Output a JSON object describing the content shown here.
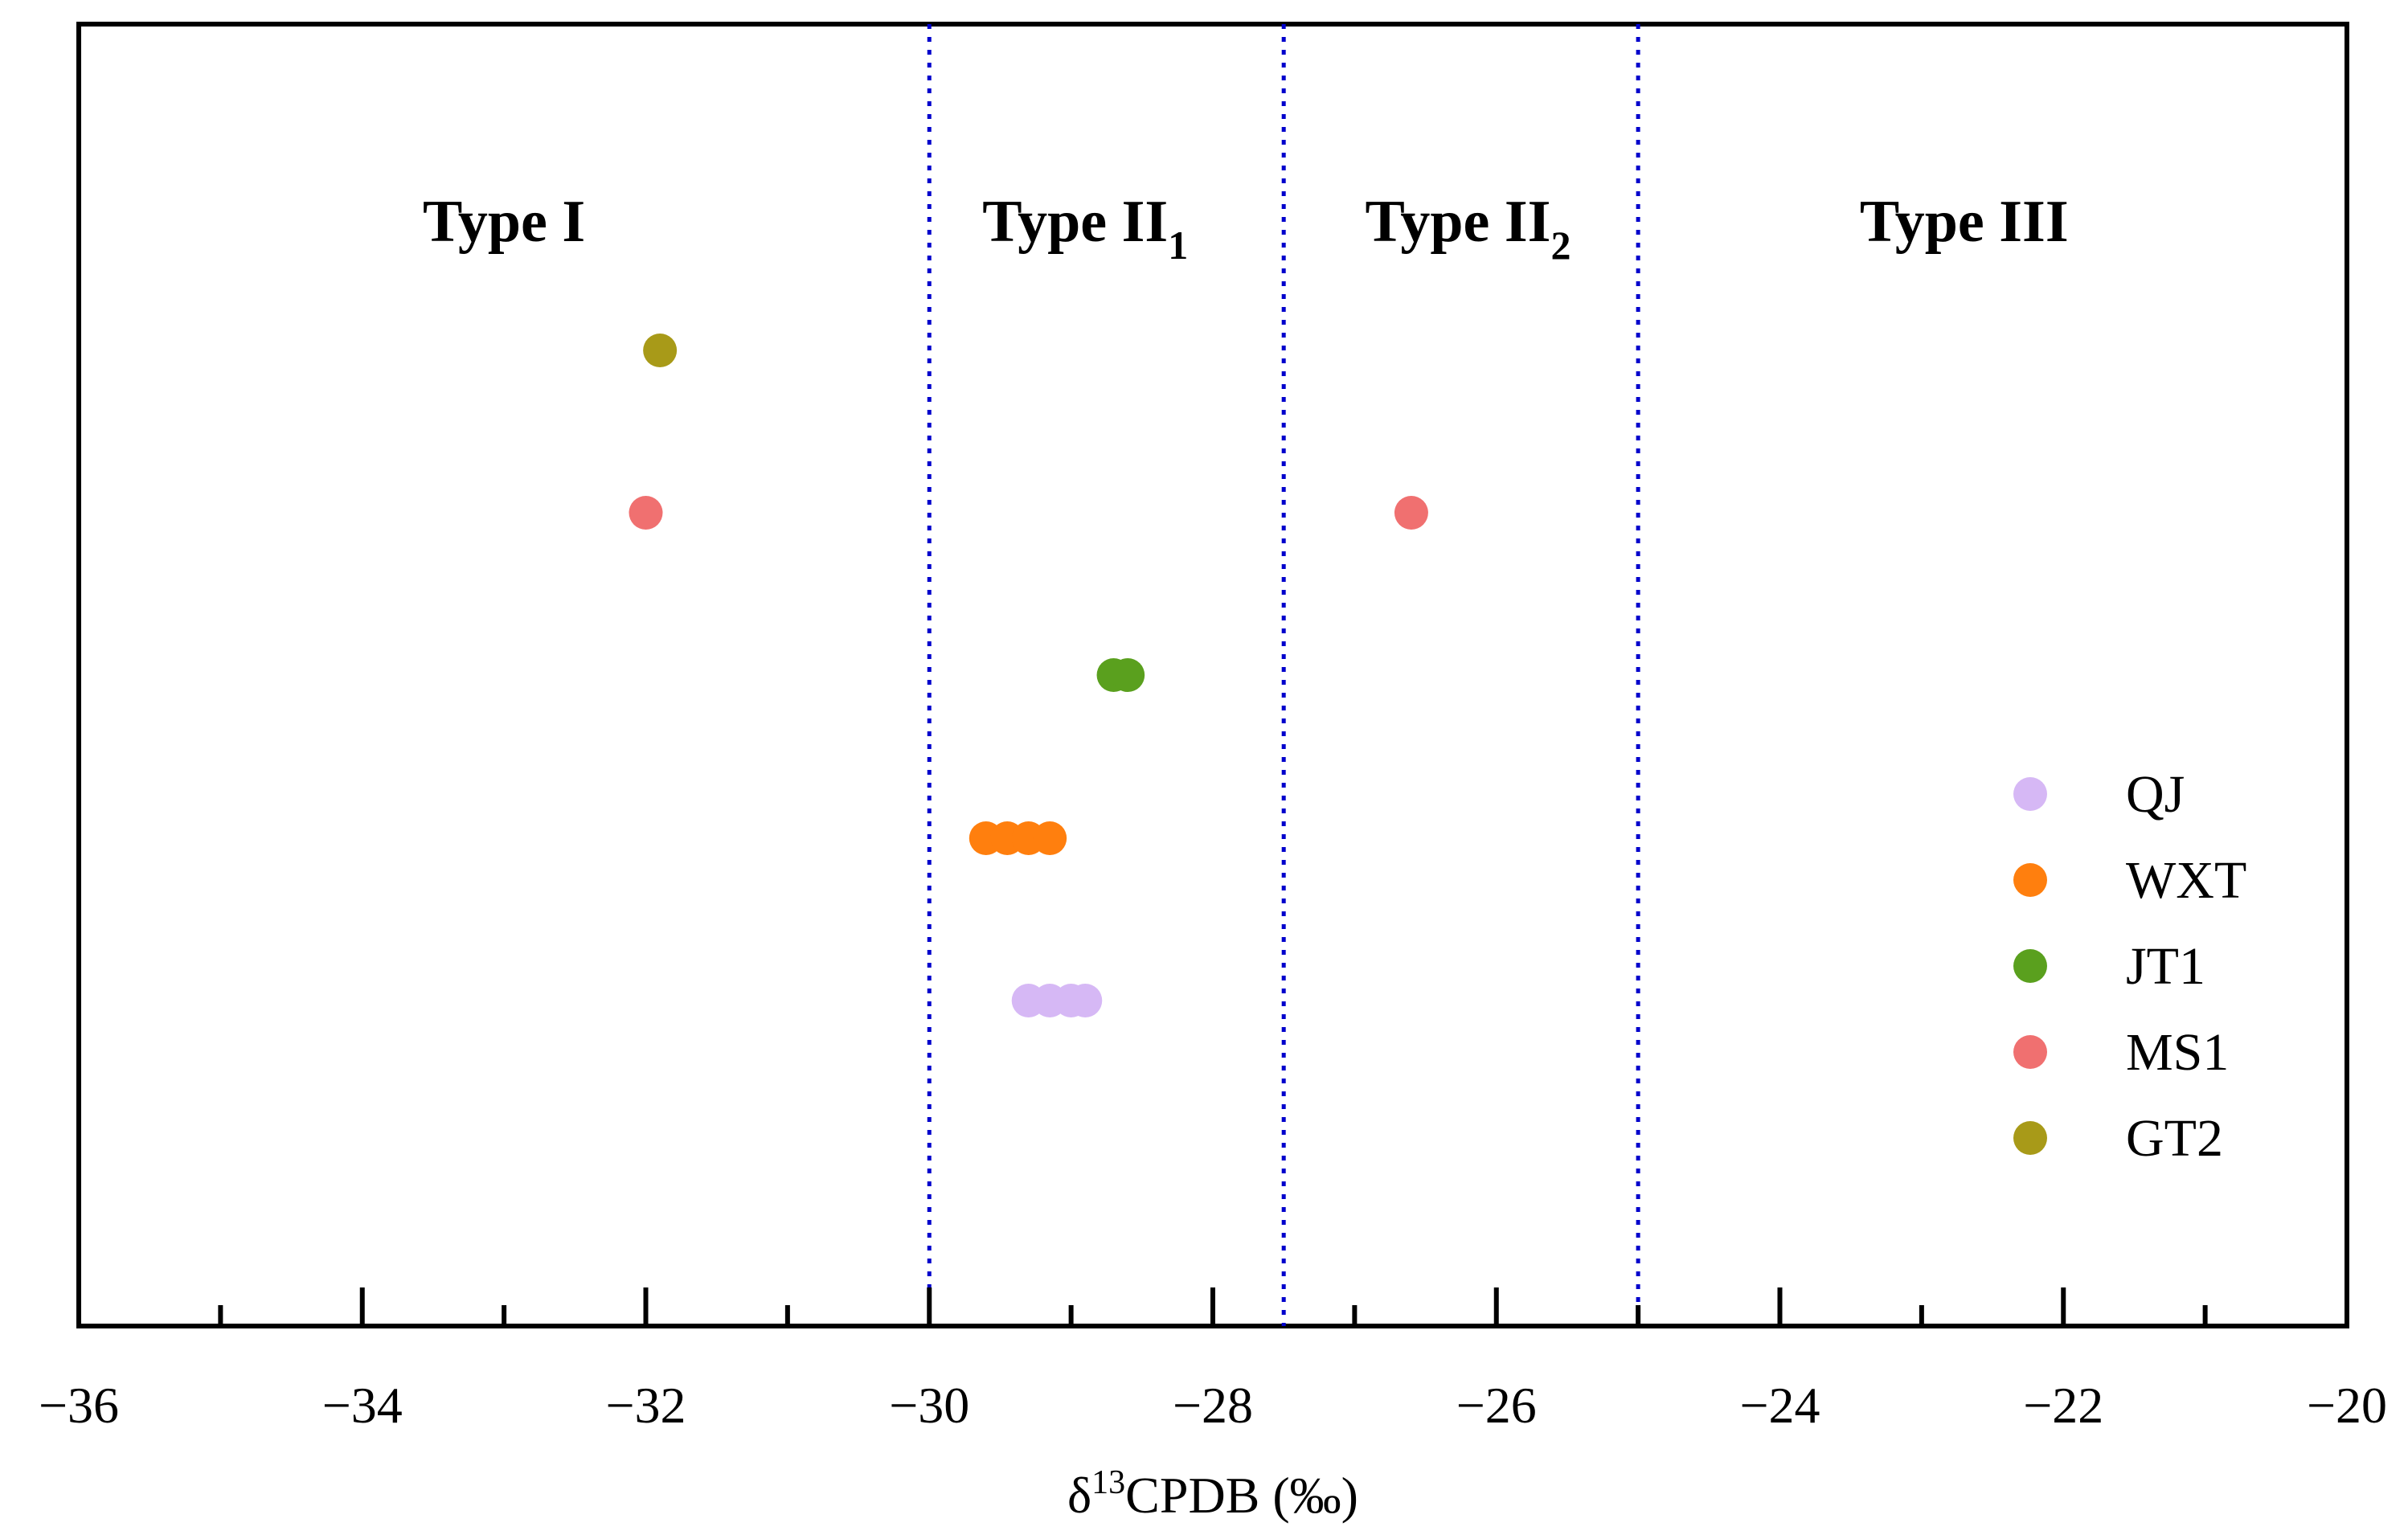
{
  "chart_data": {
    "type": "scatter",
    "title": "",
    "xlabel": {
      "prefix": "δ",
      "superscript": "13",
      "suffix": "CPDB (‰)"
    },
    "ylabel": "",
    "xlim": [
      -36,
      -20
    ],
    "major_ticks": [
      -36,
      -34,
      -32,
      -30,
      -28,
      -26,
      -24,
      -22,
      -20
    ],
    "tick_labels": [
      "−36",
      "−34",
      "−32",
      "−30",
      "−28",
      "−26",
      "−24",
      "−22",
      "−20"
    ],
    "minor_ticks": [
      -35,
      -33,
      -31,
      -29,
      -27,
      -25,
      -23,
      -21
    ],
    "y_categories": [
      "QJ",
      "WXT",
      "JT1",
      "MS1",
      "GT2"
    ],
    "series": [
      {
        "name": "QJ",
        "color": "#d6b8f5",
        "row": 1,
        "x": [
          -29.3,
          -29.15,
          -29.0,
          -28.9
        ]
      },
      {
        "name": "WXT",
        "color": "#ff7f0e",
        "row": 2,
        "x": [
          -29.6,
          -29.45,
          -29.3,
          -29.15
        ]
      },
      {
        "name": "JT1",
        "color": "#5aa01e",
        "row": 3,
        "x": [
          -28.7,
          -28.6
        ]
      },
      {
        "name": "MS1",
        "color": "#f07070",
        "row": 4,
        "x": [
          -32.0,
          -26.6
        ]
      },
      {
        "name": "GT2",
        "color": "#a89a18",
        "row": 5,
        "x": [
          -31.9
        ]
      }
    ],
    "boundaries": [
      -30,
      -27.5,
      -25
    ],
    "boundary_color": "#0000cc",
    "regions": [
      {
        "base": "Type I",
        "sub": "",
        "x_center": -33.0
      },
      {
        "base": "Type II",
        "sub": "1",
        "x_center": -28.9
      },
      {
        "base": "Type II",
        "sub": "2",
        "x_center": -26.2
      },
      {
        "base": "Type III",
        "sub": "",
        "x_center": -22.7
      }
    ],
    "legend_position": "bottom-right"
  }
}
